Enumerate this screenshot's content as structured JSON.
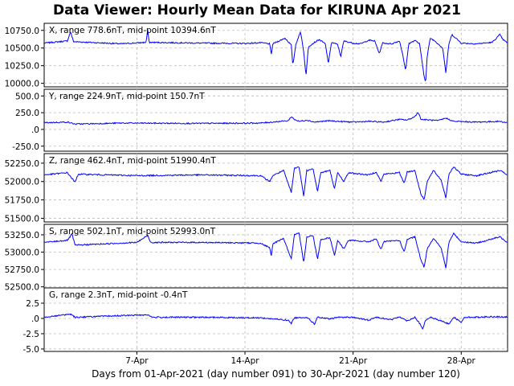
{
  "window": {
    "title": "Data Viewer:  Hourly Mean Data for KIRUNA Apr 2021"
  },
  "chart_data": {
    "type": "line",
    "xlabel": "Days from 01-Apr-2021 (day number 091) to 30-Apr-2021 (day number 120)",
    "x_tick_labels": [
      "7-Apr",
      "14-Apr",
      "21-Apr",
      "28-Apr"
    ],
    "x_tick_days": [
      7,
      14,
      21,
      28
    ],
    "xlim_days": [
      1,
      31
    ],
    "grid": true,
    "series_color": "#0000ff",
    "panels": [
      {
        "label": "X, range 778.6nT, mid-point 10394.6nT",
        "ylim": [
          9950,
          10850
        ],
        "y_ticks": [
          10000,
          10250,
          10500,
          10750
        ],
        "y_tick_labels": [
          "10000.0",
          "10250.0",
          "10500.0",
          "10750.0"
        ],
        "baseline": 10570,
        "points": [
          [
            1,
            10570
          ],
          [
            2.5,
            10600
          ],
          [
            2.7,
            10730
          ],
          [
            2.9,
            10590
          ],
          [
            6,
            10560
          ],
          [
            7.6,
            10580
          ],
          [
            7.7,
            10760
          ],
          [
            7.8,
            10580
          ],
          [
            11,
            10570
          ],
          [
            14,
            10565
          ],
          [
            15,
            10575
          ],
          [
            15.6,
            10560
          ],
          [
            15.7,
            10400
          ],
          [
            15.8,
            10560
          ],
          [
            16.2,
            10600
          ],
          [
            16.6,
            10640
          ],
          [
            17,
            10540
          ],
          [
            17.1,
            10250
          ],
          [
            17.3,
            10560
          ],
          [
            17.6,
            10730
          ],
          [
            17.8,
            10450
          ],
          [
            17.95,
            10100
          ],
          [
            18.1,
            10520
          ],
          [
            18.5,
            10580
          ],
          [
            18.8,
            10620
          ],
          [
            19.2,
            10560
          ],
          [
            19.4,
            10280
          ],
          [
            19.6,
            10580
          ],
          [
            20,
            10550
          ],
          [
            20.2,
            10380
          ],
          [
            20.4,
            10600
          ],
          [
            21,
            10570
          ],
          [
            21.5,
            10560
          ],
          [
            22,
            10610
          ],
          [
            22.4,
            10600
          ],
          [
            22.7,
            10420
          ],
          [
            22.9,
            10570
          ],
          [
            23.5,
            10560
          ],
          [
            24,
            10600
          ],
          [
            24.2,
            10420
          ],
          [
            24.4,
            10180
          ],
          [
            24.6,
            10560
          ],
          [
            25,
            10610
          ],
          [
            25.3,
            10560
          ],
          [
            25.6,
            10100
          ],
          [
            25.7,
            10020
          ],
          [
            25.8,
            10390
          ],
          [
            26,
            10640
          ],
          [
            26.3,
            10600
          ],
          [
            26.8,
            10500
          ],
          [
            27.0,
            10150
          ],
          [
            27.2,
            10560
          ],
          [
            27.4,
            10690
          ],
          [
            27.6,
            10650
          ],
          [
            28,
            10570
          ],
          [
            29,
            10560
          ],
          [
            30,
            10580
          ],
          [
            30.5,
            10690
          ],
          [
            30.7,
            10620
          ],
          [
            31,
            10570
          ]
        ]
      },
      {
        "label": "Y, range 224.9nT, mid-point 150.7nT",
        "ylim": [
          -325,
          600
        ],
        "y_ticks": [
          -250,
          0,
          250,
          500
        ],
        "y_tick_labels": [
          "-250.0",
          ".0",
          "250.0",
          "500.0"
        ],
        "baseline": 95,
        "points": [
          [
            1,
            100
          ],
          [
            2.5,
            110
          ],
          [
            3,
            80
          ],
          [
            6,
            95
          ],
          [
            11,
            90
          ],
          [
            15,
            95
          ],
          [
            16.8,
            130
          ],
          [
            17,
            190
          ],
          [
            17.2,
            150
          ],
          [
            17.5,
            120
          ],
          [
            18,
            140
          ],
          [
            18.5,
            110
          ],
          [
            19.5,
            130
          ],
          [
            20,
            120
          ],
          [
            21,
            110
          ],
          [
            22,
            120
          ],
          [
            23,
            110
          ],
          [
            24,
            150
          ],
          [
            24.5,
            140
          ],
          [
            25,
            190
          ],
          [
            25.2,
            260
          ],
          [
            25.4,
            150
          ],
          [
            26,
            140
          ],
          [
            26.5,
            130
          ],
          [
            27,
            170
          ],
          [
            27.5,
            120
          ],
          [
            29,
            110
          ],
          [
            30.5,
            120
          ],
          [
            31,
            100
          ]
        ]
      },
      {
        "label": "Z, range 462.4nT, mid-point 51990.4nT",
        "ylim": [
          51450,
          52380
        ],
        "y_ticks": [
          51500,
          51750,
          52000,
          52250
        ],
        "y_tick_labels": [
          "51500.0",
          "51750.0",
          "52000.0",
          "52250.0"
        ],
        "baseline": 52090,
        "points": [
          [
            1,
            52090
          ],
          [
            2.5,
            52120
          ],
          [
            3,
            51990
          ],
          [
            3.2,
            52100
          ],
          [
            7,
            52080
          ],
          [
            11,
            52090
          ],
          [
            15,
            52080
          ],
          [
            15.6,
            52000
          ],
          [
            15.8,
            52080
          ],
          [
            16.5,
            52150
          ],
          [
            17,
            51850
          ],
          [
            17.2,
            52180
          ],
          [
            17.5,
            52200
          ],
          [
            17.8,
            51800
          ],
          [
            18.0,
            52150
          ],
          [
            18.4,
            52180
          ],
          [
            18.7,
            51860
          ],
          [
            18.9,
            52120
          ],
          [
            19.5,
            52150
          ],
          [
            19.8,
            51900
          ],
          [
            20,
            52120
          ],
          [
            20.4,
            52000
          ],
          [
            20.7,
            52120
          ],
          [
            22,
            52090
          ],
          [
            22.5,
            52130
          ],
          [
            22.8,
            52000
          ],
          [
            23,
            52100
          ],
          [
            24,
            52120
          ],
          [
            24.3,
            51980
          ],
          [
            24.5,
            52130
          ],
          [
            25,
            52150
          ],
          [
            25.4,
            51820
          ],
          [
            25.6,
            51760
          ],
          [
            25.8,
            52000
          ],
          [
            26.2,
            52150
          ],
          [
            26.7,
            52020
          ],
          [
            27,
            51780
          ],
          [
            27.2,
            52100
          ],
          [
            27.5,
            52200
          ],
          [
            28,
            52100
          ],
          [
            29,
            52080
          ],
          [
            30.5,
            52150
          ],
          [
            31,
            52090
          ]
        ]
      },
      {
        "label": "S, range 502.1nT, mid-point 52993.0nT",
        "ylim": [
          52450,
          53400
        ],
        "y_ticks": [
          52500,
          52750,
          53000,
          53250
        ],
        "y_tick_labels": [
          "52500.0",
          "52750.0",
          "53000.0",
          "53250.0"
        ],
        "baseline": 53140,
        "points": [
          [
            1,
            53140
          ],
          [
            2.5,
            53170
          ],
          [
            2.8,
            53260
          ],
          [
            3,
            53100
          ],
          [
            7,
            53140
          ],
          [
            7.7,
            53240
          ],
          [
            7.9,
            53140
          ],
          [
            11,
            53140
          ],
          [
            15,
            53130
          ],
          [
            15.6,
            53060
          ],
          [
            15.7,
            52930
          ],
          [
            15.8,
            53120
          ],
          [
            16.5,
            53200
          ],
          [
            17,
            52900
          ],
          [
            17.2,
            53250
          ],
          [
            17.5,
            53270
          ],
          [
            17.8,
            52850
          ],
          [
            18.0,
            53220
          ],
          [
            18.4,
            53240
          ],
          [
            18.7,
            52900
          ],
          [
            18.9,
            53180
          ],
          [
            19.5,
            53210
          ],
          [
            19.8,
            52950
          ],
          [
            20,
            53170
          ],
          [
            20.4,
            53050
          ],
          [
            20.7,
            53170
          ],
          [
            22,
            53150
          ],
          [
            22.5,
            53190
          ],
          [
            22.8,
            53040
          ],
          [
            23,
            53150
          ],
          [
            24,
            53170
          ],
          [
            24.3,
            53000
          ],
          [
            24.5,
            53180
          ],
          [
            25,
            53220
          ],
          [
            25.4,
            52880
          ],
          [
            25.6,
            52780
          ],
          [
            25.8,
            53050
          ],
          [
            26.2,
            53200
          ],
          [
            26.7,
            53060
          ],
          [
            27,
            52770
          ],
          [
            27.2,
            53140
          ],
          [
            27.5,
            53270
          ],
          [
            28,
            53150
          ],
          [
            29,
            53130
          ],
          [
            30.5,
            53220
          ],
          [
            31,
            53140
          ]
        ]
      },
      {
        "label": "G, range 2.3nT, mid-point -0.4nT",
        "ylim": [
          -5.4,
          5.0
        ],
        "y_ticks": [
          -5.0,
          -2.5,
          0,
          2.5
        ],
        "y_tick_labels": [
          "-5.0",
          "-2.5",
          ".0",
          "2.5"
        ],
        "baseline": 0.2,
        "points": [
          [
            1,
            0.2
          ],
          [
            2.7,
            0.7
          ],
          [
            3,
            0.2
          ],
          [
            7.7,
            0.6
          ],
          [
            8,
            0.2
          ],
          [
            11,
            0.2
          ],
          [
            15,
            0.1
          ],
          [
            16.8,
            -0.3
          ],
          [
            17.0,
            -0.8
          ],
          [
            17.2,
            0.1
          ],
          [
            18,
            0.2
          ],
          [
            18.5,
            -0.9
          ],
          [
            18.7,
            0.2
          ],
          [
            19.5,
            -0.1
          ],
          [
            20,
            0.2
          ],
          [
            21,
            0.2
          ],
          [
            22,
            -0.3
          ],
          [
            22.5,
            0.2
          ],
          [
            23.5,
            -0.2
          ],
          [
            24,
            0.3
          ],
          [
            24.5,
            -0.4
          ],
          [
            25,
            0.2
          ],
          [
            25.3,
            -0.8
          ],
          [
            25.5,
            -1.7
          ],
          [
            25.7,
            -0.3
          ],
          [
            26,
            0.2
          ],
          [
            27,
            -0.7
          ],
          [
            27.2,
            -0.9
          ],
          [
            27.5,
            0.2
          ],
          [
            28,
            -0.6
          ],
          [
            28.2,
            0.2
          ],
          [
            29,
            0.2
          ],
          [
            30,
            0.3
          ],
          [
            31,
            0.2
          ]
        ]
      }
    ]
  }
}
